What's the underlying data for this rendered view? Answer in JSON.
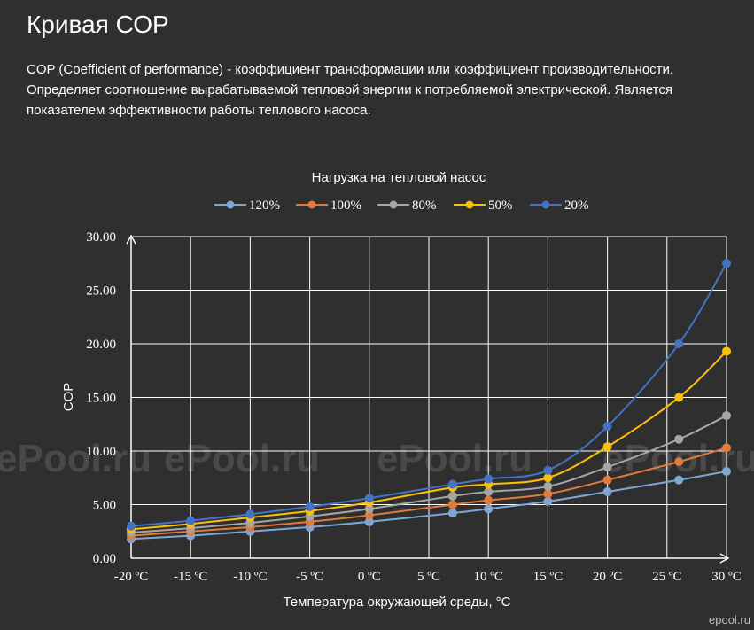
{
  "page": {
    "title": "Кривая СОР",
    "description": "COP (Coefficient of performance) - коэффициент трансформации или коэффициент производительности. Определяет соотношение вырабатываемой тепловой энергии к потребляемой электрической. Является показателем эффективности работы теплового насоса.",
    "watermark": "ePool.ru",
    "corner_watermark": "epool.ru"
  },
  "chart_data": {
    "type": "line",
    "title": "Нагрузка на тепловой насос",
    "xlabel": "Температура окружающей среды, °С",
    "ylabel": "COP",
    "x_tick_labels": [
      "-20 ºC",
      "-15 ºC",
      "-10 ºC",
      "-5 ºC",
      "0 ºC",
      "5 ºC",
      "10 ºC",
      "15 ºC",
      "20 ºC",
      "25 ºC",
      "30 ºC"
    ],
    "y_tick_labels": [
      "0.00",
      "5.00",
      "10.00",
      "15.00",
      "20.00",
      "25.00",
      "30.00"
    ],
    "ylim": [
      0,
      30
    ],
    "xlim": [
      -20,
      30
    ],
    "grid": true,
    "legend_position": "top",
    "series": [
      {
        "name": "120%",
        "color": "#7ea7d8",
        "points": [
          [
            -20,
            1.8
          ],
          [
            -15,
            2.1
          ],
          [
            -10,
            2.5
          ],
          [
            -5,
            2.9
          ],
          [
            0,
            3.4
          ],
          [
            7,
            4.2
          ],
          [
            10,
            4.6
          ],
          [
            15,
            5.3
          ],
          [
            20,
            6.2
          ],
          [
            26,
            7.3
          ],
          [
            30,
            8.1
          ]
        ]
      },
      {
        "name": "100%",
        "color": "#e07b3c",
        "points": [
          [
            -20,
            2.1
          ],
          [
            -15,
            2.5
          ],
          [
            -10,
            2.9
          ],
          [
            -5,
            3.4
          ],
          [
            0,
            4.0
          ],
          [
            7,
            5.0
          ],
          [
            10,
            5.4
          ],
          [
            15,
            6.0
          ],
          [
            20,
            7.3
          ],
          [
            26,
            9.0
          ],
          [
            30,
            10.3
          ]
        ]
      },
      {
        "name": "80%",
        "color": "#a6a6a6",
        "points": [
          [
            -20,
            2.4
          ],
          [
            -15,
            2.8
          ],
          [
            -10,
            3.3
          ],
          [
            -5,
            3.9
          ],
          [
            0,
            4.6
          ],
          [
            7,
            5.8
          ],
          [
            10,
            6.2
          ],
          [
            15,
            6.7
          ],
          [
            20,
            8.5
          ],
          [
            26,
            11.1
          ],
          [
            30,
            13.3
          ]
        ]
      },
      {
        "name": "50%",
        "color": "#ffc000",
        "points": [
          [
            -20,
            2.7
          ],
          [
            -15,
            3.2
          ],
          [
            -10,
            3.8
          ],
          [
            -5,
            4.4
          ],
          [
            0,
            5.2
          ],
          [
            7,
            6.6
          ],
          [
            10,
            6.9
          ],
          [
            15,
            7.5
          ],
          [
            20,
            10.4
          ],
          [
            26,
            15.0
          ],
          [
            30,
            19.3
          ]
        ]
      },
      {
        "name": "20%",
        "color": "#4472c4",
        "points": [
          [
            -20,
            3.0
          ],
          [
            -15,
            3.5
          ],
          [
            -10,
            4.1
          ],
          [
            -5,
            4.8
          ],
          [
            0,
            5.6
          ],
          [
            7,
            6.9
          ],
          [
            10,
            7.4
          ],
          [
            15,
            8.2
          ],
          [
            20,
            12.3
          ],
          [
            26,
            20.0
          ],
          [
            30,
            27.5
          ]
        ]
      }
    ]
  }
}
